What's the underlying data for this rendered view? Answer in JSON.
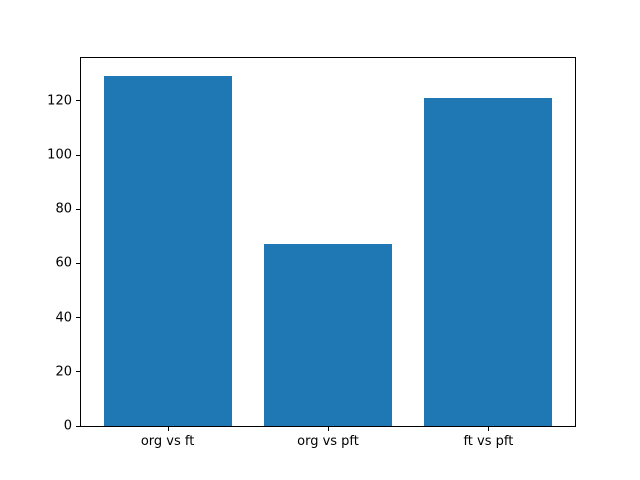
{
  "chart_data": {
    "type": "bar",
    "categories": [
      "org vs ft",
      "org vs pft",
      "ft vs pft"
    ],
    "values": [
      129,
      67,
      121
    ],
    "title": "",
    "xlabel": "",
    "ylabel": "",
    "yticks": [
      0,
      20,
      40,
      60,
      80,
      100,
      120
    ],
    "ylim": [
      0,
      135.8
    ],
    "xlim": [
      -0.54,
      2.54
    ],
    "bar_width": 0.8,
    "grid": false,
    "legend": "none",
    "bar_color": "#1f77b4",
    "background_color": "#ffffff",
    "spine_color": "#000000",
    "tick_label_color": "#000000"
  }
}
